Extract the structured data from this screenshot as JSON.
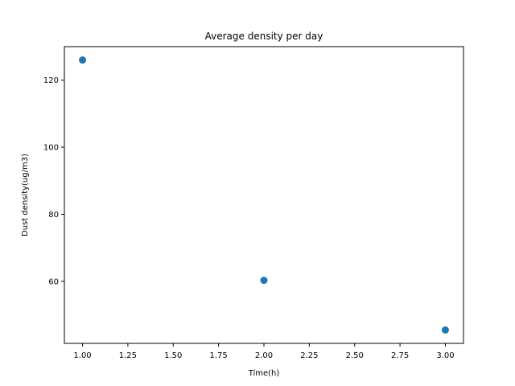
{
  "chart_data": {
    "type": "scatter",
    "title": "Average density per day",
    "xlabel": "Time(h)",
    "ylabel": "Dust density(ug/m3)",
    "x": [
      1.0,
      2.0,
      3.0
    ],
    "y": [
      126.0,
      60.3,
      45.5
    ],
    "xlim": [
      0.9,
      3.1
    ],
    "ylim": [
      41.5,
      130.0
    ],
    "xticks": [
      1.0,
      1.25,
      1.5,
      1.75,
      2.0,
      2.25,
      2.5,
      2.75,
      3.0
    ],
    "xtick_labels": [
      "1.00",
      "1.25",
      "1.50",
      "1.75",
      "2.00",
      "2.25",
      "2.50",
      "2.75",
      "3.00"
    ],
    "yticks": [
      60,
      80,
      100,
      120
    ],
    "ytick_labels": [
      "60",
      "80",
      "100",
      "120"
    ],
    "grid": false,
    "marker_color": "#1f77b4"
  }
}
